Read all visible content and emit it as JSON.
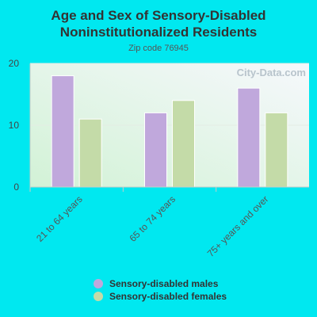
{
  "chart_data": {
    "type": "bar",
    "title": "Age and Sex of Sensory-Disabled Noninstitutionalized Residents",
    "title_lines": [
      "Age and Sex of Sensory-Disabled",
      "Noninstitutionalized Residents"
    ],
    "subtitle": "Zip code 76945",
    "categories": [
      "21 to 64 years",
      "65 to 74 years",
      "75+ years and over"
    ],
    "series": [
      {
        "name": "Sensory-disabled males",
        "values": [
          18,
          12,
          16
        ],
        "color": "#c0a8dc"
      },
      {
        "name": "Sensory-disabled females",
        "values": [
          11,
          14,
          12
        ],
        "color": "#c4dba8"
      }
    ],
    "yticks": [
      0,
      10,
      20
    ],
    "ylim": [
      0,
      20
    ],
    "grid": true,
    "legend_position": "bottom",
    "watermark": "City-Data.com"
  }
}
